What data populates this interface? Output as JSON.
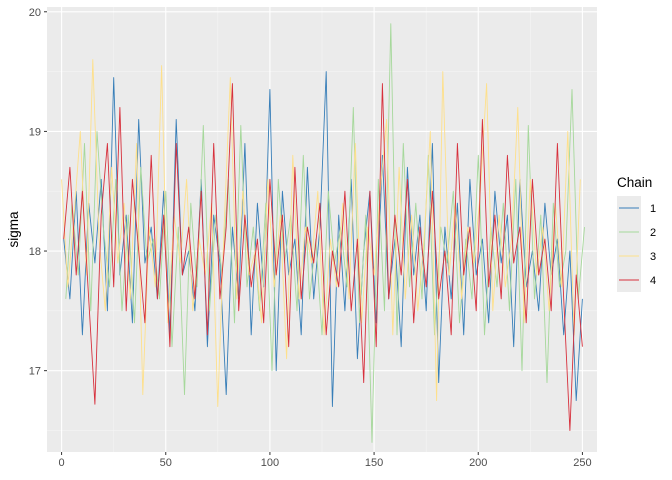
{
  "chart_data": {
    "type": "line",
    "title": "",
    "xlabel": "",
    "ylabel": "sigma",
    "xlim": [
      -7,
      257
    ],
    "ylim": [
      16.32,
      20.04
    ],
    "x_ticks": [
      0,
      50,
      100,
      150,
      200,
      250
    ],
    "y_ticks": [
      17,
      18,
      19,
      20
    ],
    "grid": true,
    "legend": {
      "title": "Chain",
      "placement": "right"
    },
    "series": [
      {
        "name": "1",
        "color": "#377EB8",
        "x": [
          1,
          4,
          7,
          10,
          13,
          16,
          19,
          22,
          25,
          28,
          31,
          34,
          37,
          40,
          43,
          46,
          49,
          52,
          55,
          58,
          61,
          64,
          67,
          70,
          73,
          76,
          79,
          82,
          85,
          88,
          91,
          94,
          97,
          100,
          103,
          106,
          109,
          112,
          115,
          118,
          121,
          124,
          127,
          130,
          133,
          136,
          139,
          142,
          145,
          148,
          151,
          154,
          157,
          160,
          163,
          166,
          169,
          172,
          175,
          178,
          181,
          184,
          187,
          190,
          193,
          196,
          199,
          202,
          205,
          208,
          211,
          214,
          217,
          220,
          223,
          226,
          229,
          232,
          235,
          238,
          241,
          244,
          247,
          250
        ],
        "y": [
          18.1,
          17.6,
          18.5,
          17.3,
          18.4,
          17.9,
          18.6,
          17.5,
          19.45,
          17.8,
          18.3,
          17.4,
          19.1,
          17.9,
          18.2,
          17.6,
          18.5,
          17.3,
          19.1,
          17.8,
          18.0,
          17.5,
          18.6,
          17.2,
          18.3,
          17.9,
          16.8,
          18.2,
          17.6,
          18.9,
          17.3,
          18.4,
          17.7,
          19.35,
          17.0,
          18.5,
          17.8,
          18.1,
          17.3,
          18.7,
          17.6,
          18.2,
          19.5,
          16.7,
          18.3,
          17.5,
          18.6,
          17.1,
          18.0,
          18.5,
          17.4,
          18.8,
          17.6,
          18.1,
          17.2,
          18.7,
          17.8,
          18.3,
          17.5,
          18.9,
          16.9,
          18.2,
          17.6,
          18.4,
          17.3,
          18.6,
          17.8,
          18.1,
          17.4,
          18.5,
          17.9,
          18.3,
          17.2,
          18.6,
          17.7,
          18.0,
          17.5,
          18.4,
          17.8,
          18.1,
          17.3,
          18.0,
          16.75,
          17.6
        ]
      },
      {
        "name": "2",
        "color": "#A6D89B",
        "x": [
          2,
          5,
          8,
          11,
          14,
          17,
          20,
          23,
          26,
          29,
          32,
          35,
          38,
          41,
          44,
          47,
          50,
          53,
          56,
          59,
          62,
          65,
          68,
          71,
          74,
          77,
          80,
          83,
          86,
          89,
          92,
          95,
          98,
          101,
          104,
          107,
          110,
          113,
          116,
          119,
          122,
          125,
          128,
          131,
          134,
          137,
          140,
          143,
          146,
          149,
          152,
          155,
          158,
          161,
          164,
          167,
          170,
          173,
          176,
          179,
          182,
          185,
          188,
          191,
          194,
          197,
          200,
          203,
          206,
          209,
          212,
          215,
          218,
          221,
          224,
          227,
          230,
          233,
          236,
          239,
          242,
          245,
          248,
          251
        ],
        "y": [
          17.6,
          18.4,
          17.8,
          18.9,
          17.5,
          19.0,
          18.2,
          17.7,
          18.6,
          17.5,
          18.3,
          17.4,
          18.7,
          17.9,
          18.1,
          17.6,
          18.5,
          17.2,
          18.2,
          16.8,
          18.4,
          17.7,
          19.05,
          17.5,
          18.3,
          17.8,
          18.6,
          17.4,
          19.05,
          17.7,
          18.2,
          17.5,
          18.4,
          17.0,
          18.6,
          17.9,
          18.3,
          17.5,
          18.8,
          17.6,
          18.1,
          17.3,
          18.5,
          17.9,
          18.2,
          17.7,
          19.2,
          17.4,
          18.3,
          16.4,
          18.6,
          17.5,
          19.9,
          17.3,
          18.9,
          17.7,
          18.4,
          17.6,
          18.8,
          17.3,
          18.2,
          17.9,
          18.5,
          17.4,
          18.1,
          17.6,
          18.8,
          17.3,
          18.2,
          17.7,
          18.4,
          17.5,
          18.6,
          17.0,
          19.05,
          17.6,
          18.3,
          16.9,
          18.4,
          17.7,
          18.0,
          19.35,
          17.6,
          18.2
        ]
      },
      {
        "name": "3",
        "color": "#FEE08B",
        "x": [
          0,
          3,
          6,
          9,
          12,
          15,
          18,
          21,
          24,
          27,
          30,
          33,
          36,
          39,
          42,
          45,
          48,
          51,
          54,
          57,
          60,
          63,
          66,
          69,
          72,
          75,
          78,
          81,
          84,
          87,
          90,
          93,
          96,
          99,
          102,
          105,
          108,
          111,
          114,
          117,
          120,
          123,
          126,
          129,
          132,
          135,
          138,
          141,
          144,
          147,
          150,
          153,
          156,
          159,
          162,
          165,
          168,
          171,
          174,
          177,
          180,
          183,
          186,
          189,
          192,
          195,
          198,
          201,
          204,
          207,
          210,
          213,
          216,
          219,
          222,
          225,
          228,
          231,
          234,
          237,
          240,
          243,
          246,
          249
        ],
        "y": [
          18.6,
          17.7,
          18.3,
          19.0,
          17.8,
          19.6,
          18.1,
          17.5,
          18.7,
          17.9,
          18.4,
          17.6,
          18.9,
          16.8,
          18.2,
          17.7,
          19.55,
          17.4,
          18.3,
          17.9,
          18.6,
          17.5,
          18.1,
          17.8,
          18.4,
          16.7,
          18.2,
          19.45,
          17.6,
          18.5,
          17.8,
          18.0,
          17.4,
          18.6,
          17.7,
          18.3,
          17.1,
          18.8,
          17.6,
          18.2,
          17.9,
          18.5,
          17.3,
          18.1,
          17.7,
          18.4,
          17.6,
          18.9,
          17.4,
          18.2,
          17.8,
          18.5,
          19.1,
          17.3,
          18.7,
          17.6,
          18.3,
          17.5,
          18.1,
          19.0,
          16.75,
          19.5,
          17.8,
          18.4,
          17.6,
          18.2,
          17.9,
          18.5,
          19.4,
          17.5,
          18.3,
          17.7,
          18.1,
          19.2,
          17.4,
          18.6,
          17.8,
          18.2,
          17.5,
          18.4,
          17.7,
          19.0,
          17.3,
          18.6
        ]
      },
      {
        "name": "4",
        "color": "#D7303C",
        "x": [
          1,
          4,
          7,
          10,
          13,
          16,
          19,
          22,
          25,
          28,
          31,
          34,
          37,
          40,
          43,
          46,
          49,
          52,
          55,
          58,
          61,
          64,
          67,
          70,
          73,
          76,
          79,
          82,
          85,
          88,
          91,
          94,
          97,
          100,
          103,
          106,
          109,
          112,
          115,
          118,
          121,
          124,
          127,
          130,
          133,
          136,
          139,
          142,
          145,
          148,
          151,
          154,
          157,
          160,
          163,
          166,
          169,
          172,
          175,
          178,
          181,
          184,
          187,
          190,
          193,
          196,
          199,
          202,
          205,
          208,
          211,
          214,
          217,
          220,
          223,
          226,
          229,
          232,
          235,
          238,
          241,
          244,
          247,
          250
        ],
        "y": [
          18.1,
          18.7,
          17.8,
          18.5,
          17.6,
          16.72,
          18.3,
          18.9,
          17.7,
          19.2,
          17.5,
          18.6,
          18.0,
          17.4,
          18.8,
          17.6,
          18.3,
          17.2,
          18.9,
          17.8,
          18.2,
          17.6,
          18.5,
          17.3,
          18.9,
          17.6,
          18.2,
          19.4,
          17.5,
          18.3,
          17.7,
          18.1,
          17.4,
          18.6,
          17.8,
          18.3,
          17.2,
          18.7,
          17.6,
          18.2,
          17.9,
          18.4,
          17.3,
          18.0,
          17.7,
          18.5,
          17.5,
          18.1,
          16.9,
          18.5,
          17.2,
          19.4,
          17.6,
          18.3,
          17.8,
          18.6,
          17.4,
          18.2,
          17.7,
          18.5,
          17.6,
          18.0,
          17.3,
          18.9,
          17.8,
          18.2,
          17.5,
          19.1,
          17.7,
          18.3,
          17.6,
          18.8,
          17.9,
          18.2,
          17.4,
          18.6,
          17.8,
          18.1,
          17.5,
          18.9,
          17.6,
          16.5,
          17.8,
          17.2
        ]
      }
    ]
  }
}
